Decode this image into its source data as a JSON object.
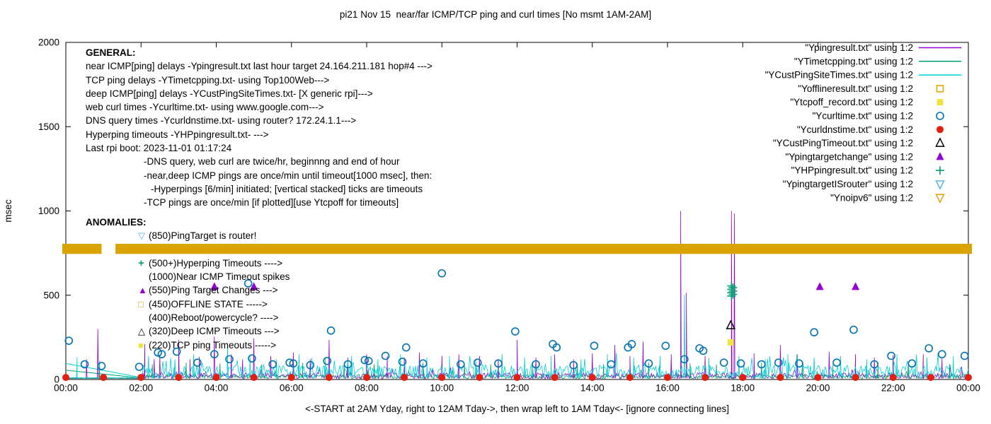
{
  "title": "pi21 Nov 15  near/far ICMP/TCP ping and curl times [No msmt 1AM-2AM]",
  "general": {
    "heading": "GENERAL:",
    "lines": [
      {
        "indent": 0,
        "text": "near ICMP[ping] delays -Ypingresult.txt last hour target 24.164.211.181 hop#4 --->"
      },
      {
        "indent": 0,
        "text": "TCP ping delays -YTimetcpping.txt- using Top100Web--->"
      },
      {
        "indent": 0,
        "text": "deep ICMP[ping] delays -YCustPingSiteTimes.txt- [X generic rpi]--->"
      },
      {
        "indent": 0,
        "text": "web curl times -Ycurltime.txt- using www.google.com--->"
      },
      {
        "indent": 0,
        "text": "DNS query times -Ycurldnstime.txt- using router? 172.24.1.1--->"
      },
      {
        "indent": 0,
        "text": "Hyperping timeouts -YHPpingresult.txt- --->"
      },
      {
        "indent": 0,
        "text": "Last rpi boot: 2023-11-01 01:17:24"
      },
      {
        "indent": 82,
        "text": "-DNS query, web curl are twice/hr, beginnng and end of hour"
      },
      {
        "indent": 82,
        "text": "-near,deep ICMP pings are once/min until timeout[1000 msec], then:"
      },
      {
        "indent": 92,
        "text": "-Hyperpings [6/min] initiated; [vertical stacked] ticks are timeouts"
      },
      {
        "indent": 82,
        "text": "-TCP pings are once/min [if plotted][use Ytcpoff for timeouts]"
      }
    ]
  },
  "anomalies": {
    "heading": "ANOMALIES:",
    "items": [
      {
        "marker": "triangle-down-open",
        "color": "#56b4e9",
        "text": "(850)PingTarget is router!"
      },
      {
        "marker": "none",
        "color": "",
        "text": ""
      },
      {
        "marker": "plus",
        "color": "#009e73",
        "text": "(500+)Hyperping Timeouts ---->"
      },
      {
        "marker": "none",
        "color": "",
        "text": "(1000)Near ICMP Timeout spikes"
      },
      {
        "marker": "triangle-filled",
        "color": "#9400d3",
        "text": "(550)Ping Target Changes --->"
      },
      {
        "marker": "square-open",
        "color": "#e69f00",
        "text": "(450)OFFLINE STATE ----->"
      },
      {
        "marker": "none",
        "color": "",
        "text": "(400)Reboot/powercycle? ---->"
      },
      {
        "marker": "triangle-open",
        "color": "#000000",
        "text": "(320)Deep ICMP Timeouts --->"
      },
      {
        "marker": "square-filled",
        "color": "#f0e442",
        "text": "(220)TCP ping Timeouts ----->"
      }
    ]
  },
  "chart_data": {
    "type": "line",
    "title": "pi21 Nov 15  near/far ICMP/TCP ping and curl times [No msmt 1AM-2AM]",
    "xlabel": "<-START at 2AM Yday, right to 12AM Tday->, then wrap left to 1AM Tday<- [ignore connecting lines]",
    "ylabel": "msec",
    "xlim": [
      0,
      24
    ],
    "ylim": [
      0,
      2000
    ],
    "grid": false,
    "legend_position": "top-right",
    "no_measurement_window": "1AM-2AM",
    "x_ticks": [
      {
        "h": 0,
        "label": "00:00"
      },
      {
        "h": 2,
        "label": "02:00"
      },
      {
        "h": 4,
        "label": "04:00"
      },
      {
        "h": 6,
        "label": "06:00"
      },
      {
        "h": 8,
        "label": "08:00"
      },
      {
        "h": 10,
        "label": "10:00"
      },
      {
        "h": 12,
        "label": "12:00"
      },
      {
        "h": 14,
        "label": "14:00"
      },
      {
        "h": 16,
        "label": "16:00"
      },
      {
        "h": 18,
        "label": "18:00"
      },
      {
        "h": 20,
        "label": "20:00"
      },
      {
        "h": 22,
        "label": "22:00"
      },
      {
        "h": 24,
        "label": "00:00"
      }
    ],
    "y_ticks": [
      {
        "v": 0,
        "label": "0"
      },
      {
        "v": 500,
        "label": "500"
      },
      {
        "v": 1000,
        "label": "1000"
      },
      {
        "v": 1500,
        "label": "1500"
      },
      {
        "v": 2000,
        "label": "2000"
      }
    ],
    "legend": [
      {
        "label": "\"Ypingresult.txt\" using 1:2",
        "sample": "line",
        "color": "#9400d3"
      },
      {
        "label": "\"YTimetcpping.txt\" using 1:2",
        "sample": "line",
        "color": "#009e73"
      },
      {
        "label": "\"YCustPingSiteTimes.txt\" using 1:2",
        "sample": "line",
        "color": "#00ced1"
      },
      {
        "label": "\"Yofflineresult.txt\" using 1:2",
        "sample": "square-open",
        "color": "#e69f00"
      },
      {
        "label": "\"Ytcpoff_record.txt\" using 1:2",
        "sample": "square-filled",
        "color": "#f0e442"
      },
      {
        "label": "\"Ycurltime.txt\" using 1:2",
        "sample": "circle-open",
        "color": "#0072b2"
      },
      {
        "label": "\"Ycurldnstime.txt\" using 1:2",
        "sample": "circle-filled",
        "color": "#e51e10"
      },
      {
        "label": "\"YCustPingTimeout.txt\" using 1:2",
        "sample": "triangle-open",
        "color": "#000000"
      },
      {
        "label": "\"Ypingtargetchange\" using 1:2",
        "sample": "triangle-filled",
        "color": "#9400d3"
      },
      {
        "label": "\"YHPpingresult.txt\" using 1:2",
        "sample": "plus",
        "color": "#009e73"
      },
      {
        "label": "\"YpingtargetISrouter\" using 1:2",
        "sample": "triangle-down-open",
        "color": "#56b4e9"
      },
      {
        "label": "\"Ynoipv6\" using 1:2",
        "sample": "triangle-down-open",
        "color": "#e69f00"
      }
    ],
    "band": {
      "series": "Ynoipv6",
      "color": "#d9a300",
      "y_low": 745,
      "y_high": 805,
      "segments": [
        [
          0,
          0.95
        ],
        [
          1.32,
          24
        ]
      ]
    },
    "line_series": [
      {
        "name": "Ypingresult",
        "color": "#9400d3",
        "baseline": [
          4,
          40
        ],
        "quiet_value": 6,
        "spikes": [
          [
            0.55,
            120
          ],
          [
            0.85,
            300
          ],
          [
            2.1,
            210
          ],
          [
            2.35,
            120
          ],
          [
            2.5,
            145
          ],
          [
            3.0,
            235
          ],
          [
            3.3,
            120
          ],
          [
            3.55,
            135
          ],
          [
            3.95,
            255
          ],
          [
            4.4,
            150
          ],
          [
            4.7,
            120
          ],
          [
            5.0,
            245
          ],
          [
            5.45,
            140
          ],
          [
            6.05,
            160
          ],
          [
            6.5,
            120
          ],
          [
            7.0,
            235
          ],
          [
            7.5,
            130
          ],
          [
            8.0,
            150
          ],
          [
            8.55,
            140
          ],
          [
            9.0,
            130
          ],
          [
            9.4,
            160
          ],
          [
            10.0,
            140
          ],
          [
            10.45,
            150
          ],
          [
            11.0,
            140
          ],
          [
            11.5,
            120
          ],
          [
            12.0,
            235
          ],
          [
            12.5,
            130
          ],
          [
            13.0,
            150
          ],
          [
            13.5,
            120
          ],
          [
            14.0,
            155
          ],
          [
            14.6,
            205
          ],
          [
            15.0,
            140
          ],
          [
            15.35,
            225
          ],
          [
            16.1,
            150
          ],
          [
            16.35,
            1000
          ],
          [
            16.5,
            515
          ],
          [
            17.0,
            140
          ],
          [
            17.7,
            1000
          ],
          [
            17.78,
            985
          ],
          [
            18.3,
            155
          ],
          [
            19.0,
            205
          ],
          [
            19.45,
            150
          ],
          [
            20.3,
            165
          ],
          [
            21.0,
            150
          ],
          [
            21.5,
            130
          ],
          [
            22.0,
            145
          ],
          [
            22.8,
            150
          ],
          [
            23.3,
            125
          ]
        ]
      },
      {
        "name": "YTimetcpping",
        "color": "#009e73",
        "baseline": [
          4,
          30
        ],
        "quiet_value": 5,
        "spikes": [
          [
            0.9,
            110
          ],
          [
            2.3,
            90
          ],
          [
            3.2,
            100
          ],
          [
            4.1,
            95
          ],
          [
            5.2,
            90
          ],
          [
            6.3,
            100
          ],
          [
            7.4,
            95
          ],
          [
            8.2,
            90
          ],
          [
            9.5,
            100
          ],
          [
            10.6,
            95
          ],
          [
            11.3,
            90
          ],
          [
            12.4,
            100
          ],
          [
            13.6,
            95
          ],
          [
            14.3,
            90
          ],
          [
            15.5,
            100
          ],
          [
            16.6,
            95
          ],
          [
            17.3,
            90
          ],
          [
            18.5,
            100
          ],
          [
            19.6,
            95
          ],
          [
            20.4,
            90
          ],
          [
            21.6,
            100
          ],
          [
            22.4,
            95
          ],
          [
            23.5,
            90
          ]
        ]
      },
      {
        "name": "YCustPingSiteTimes",
        "color": "#00ced1",
        "baseline": [
          8,
          85
        ],
        "quiet_value": 9,
        "spikes": [
          [
            0.3,
            130
          ],
          [
            2.2,
            140
          ],
          [
            2.9,
            120
          ],
          [
            3.4,
            150
          ],
          [
            4.3,
            200
          ],
          [
            4.9,
            140
          ],
          [
            5.6,
            120
          ],
          [
            6.2,
            150
          ],
          [
            6.9,
            130
          ],
          [
            7.6,
            140
          ],
          [
            8.3,
            120
          ],
          [
            8.9,
            150
          ],
          [
            9.6,
            130
          ],
          [
            10.2,
            140
          ],
          [
            10.9,
            120
          ],
          [
            11.6,
            150
          ],
          [
            12.2,
            130
          ],
          [
            12.9,
            140
          ],
          [
            13.7,
            120
          ],
          [
            14.4,
            150
          ],
          [
            15.1,
            130
          ],
          [
            15.8,
            140
          ],
          [
            16.45,
            500
          ],
          [
            17.1,
            130
          ],
          [
            17.9,
            140
          ],
          [
            18.6,
            120
          ],
          [
            19.2,
            150
          ],
          [
            19.9,
            130
          ],
          [
            20.6,
            140
          ],
          [
            21.3,
            120
          ],
          [
            22.1,
            150
          ],
          [
            22.9,
            130
          ],
          [
            23.6,
            140
          ]
        ]
      }
    ],
    "wrap_lines": [
      {
        "color": "#00ced1",
        "from": [
          0,
          95
        ],
        "to": [
          2.05,
          10
        ]
      },
      {
        "color": "#009e73",
        "from": [
          0,
          55
        ],
        "to": [
          2.05,
          8
        ]
      }
    ],
    "scatter_series": [
      {
        "name": "Ycurltime",
        "marker": "circle-open",
        "color": "#0072b2",
        "points": [
          [
            0.08,
            230
          ],
          [
            0.5,
            90
          ],
          [
            0.95,
            80
          ],
          [
            1.95,
            75
          ],
          [
            2.45,
            160
          ],
          [
            2.55,
            150
          ],
          [
            2.95,
            165
          ],
          [
            3.5,
            100
          ],
          [
            3.95,
            150
          ],
          [
            4.35,
            120
          ],
          [
            4.85,
            570
          ],
          [
            4.95,
            125
          ],
          [
            5.5,
            90
          ],
          [
            5.95,
            100
          ],
          [
            6.05,
            95
          ],
          [
            6.5,
            85
          ],
          [
            6.95,
            110
          ],
          [
            7.05,
            290
          ],
          [
            7.5,
            90
          ],
          [
            7.95,
            115
          ],
          [
            8.05,
            110
          ],
          [
            8.5,
            140
          ],
          [
            8.95,
            105
          ],
          [
            9.05,
            190
          ],
          [
            9.5,
            95
          ],
          [
            10.0,
            630
          ],
          [
            10.5,
            90
          ],
          [
            10.95,
            100
          ],
          [
            11.5,
            95
          ],
          [
            11.95,
            285
          ],
          [
            12.5,
            90
          ],
          [
            12.95,
            210
          ],
          [
            13.05,
            190
          ],
          [
            13.5,
            85
          ],
          [
            14.05,
            200
          ],
          [
            14.5,
            90
          ],
          [
            14.95,
            190
          ],
          [
            15.05,
            210
          ],
          [
            15.5,
            95
          ],
          [
            15.95,
            200
          ],
          [
            16.45,
            120
          ],
          [
            16.85,
            185
          ],
          [
            16.95,
            170
          ],
          [
            17.5,
            100
          ],
          [
            17.95,
            95
          ],
          [
            18.5,
            90
          ],
          [
            18.95,
            100
          ],
          [
            19.5,
            95
          ],
          [
            19.9,
            280
          ],
          [
            20.5,
            100
          ],
          [
            20.95,
            295
          ],
          [
            21.5,
            90
          ],
          [
            21.95,
            140
          ],
          [
            22.5,
            95
          ],
          [
            22.95,
            185
          ],
          [
            23.3,
            150
          ],
          [
            23.9,
            140
          ]
        ]
      },
      {
        "name": "Ycurldnstime",
        "marker": "circle-filled",
        "color": "#e51e10",
        "points": [
          [
            0,
            12
          ],
          [
            1,
            12
          ],
          [
            2,
            12
          ],
          [
            3,
            12
          ],
          [
            4,
            12
          ],
          [
            5,
            12
          ],
          [
            6,
            12
          ],
          [
            7,
            12
          ],
          [
            8,
            12
          ],
          [
            9,
            12
          ],
          [
            10,
            12
          ],
          [
            11,
            12
          ],
          [
            12,
            12
          ],
          [
            13,
            12
          ],
          [
            14,
            12
          ],
          [
            15,
            12
          ],
          [
            16,
            12
          ],
          [
            17,
            12
          ],
          [
            18,
            12
          ],
          [
            19,
            12
          ],
          [
            20,
            12
          ],
          [
            21,
            12
          ],
          [
            22,
            12
          ],
          [
            23,
            12
          ],
          [
            24,
            12
          ]
        ]
      },
      {
        "name": "YHPpingresult",
        "marker": "plus",
        "color": "#009e73",
        "points": [
          [
            17.7,
            495
          ],
          [
            17.7,
            515
          ],
          [
            17.7,
            535
          ],
          [
            17.7,
            555
          ],
          [
            17.74,
            505
          ],
          [
            17.74,
            525
          ],
          [
            17.74,
            545
          ]
        ]
      },
      {
        "name": "YCustPingTimeout",
        "marker": "triangle-open",
        "color": "#000000",
        "points": [
          [
            17.68,
            320
          ]
        ]
      },
      {
        "name": "Ytcpoff_record",
        "marker": "square-filled",
        "color": "#f0e442",
        "points": [
          [
            17.68,
            220
          ]
        ]
      },
      {
        "name": "Ypingtargetchange",
        "marker": "triangle-filled",
        "color": "#9400d3",
        "points": [
          [
            3.95,
            550
          ],
          [
            5.0,
            550
          ],
          [
            20.05,
            550
          ],
          [
            21.0,
            550
          ]
        ]
      }
    ]
  }
}
